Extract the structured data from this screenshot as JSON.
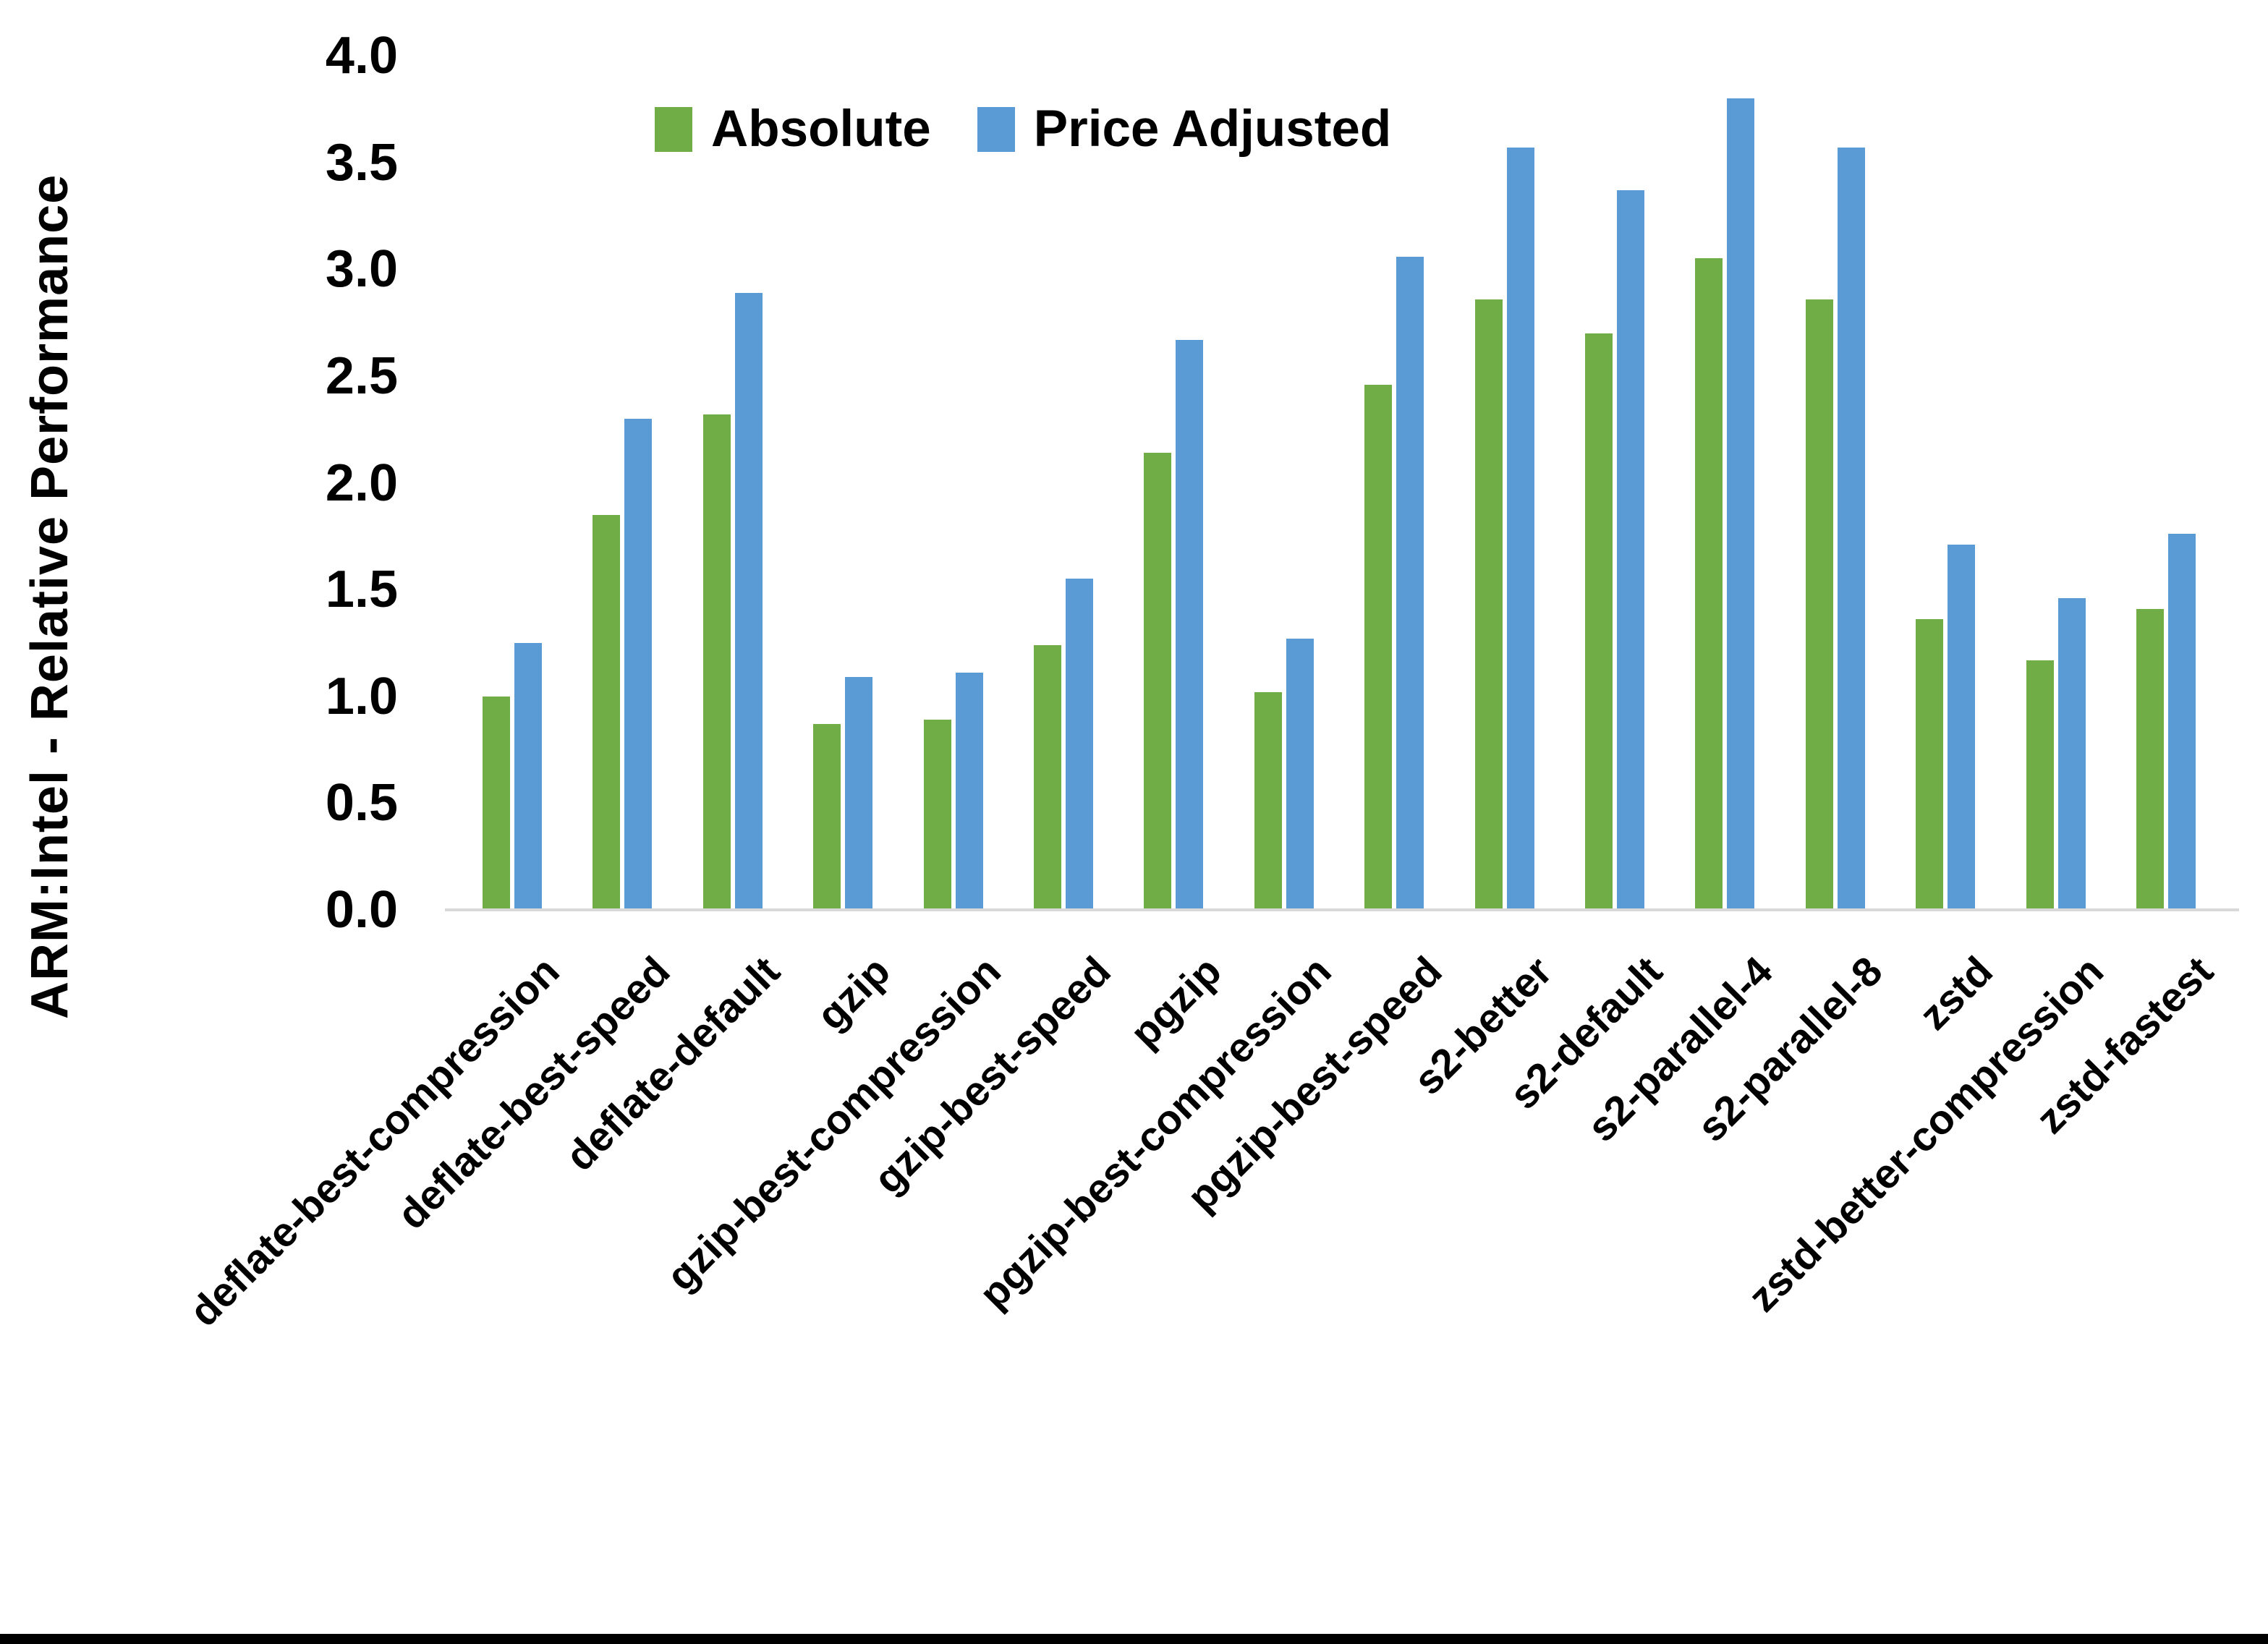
{
  "chart_data": {
    "type": "bar",
    "title": "",
    "xlabel": "",
    "ylabel": "ARM:Intel - Relative Performance",
    "ylim": [
      0.0,
      4.0
    ],
    "ytick_step": 0.5,
    "yticks": [
      "0.0",
      "0.5",
      "1.0",
      "1.5",
      "2.0",
      "2.5",
      "3.0",
      "3.5",
      "4.0"
    ],
    "grid": false,
    "legend_position": "top-center",
    "axis_line_color": "#d9d9d9",
    "categories": [
      "deflate-best-compression",
      "deflate-best-speed",
      "deflate-default",
      "gzip",
      "gzip-best-compression",
      "gzip-best-speed",
      "pgzip",
      "pgzip-best-compression",
      "pgzip-best-speed",
      "s2-better",
      "s2-default",
      "s2-parallel-4",
      "s2-parallel-8",
      "zstd",
      "zstd-better-compression",
      "zstd-fastest"
    ],
    "series": [
      {
        "name": "Absolute",
        "color": "#70AD47",
        "values": [
          1.0,
          1.85,
          2.32,
          0.87,
          0.89,
          1.24,
          2.14,
          1.02,
          2.46,
          2.86,
          2.7,
          3.05,
          2.86,
          1.36,
          1.17,
          1.41
        ]
      },
      {
        "name": "Price Adjusted",
        "color": "#5B9BD5",
        "values": [
          1.25,
          2.3,
          2.89,
          1.09,
          1.11,
          1.55,
          2.67,
          1.27,
          3.06,
          3.57,
          3.37,
          3.8,
          3.57,
          1.71,
          1.46,
          1.76
        ]
      }
    ]
  }
}
